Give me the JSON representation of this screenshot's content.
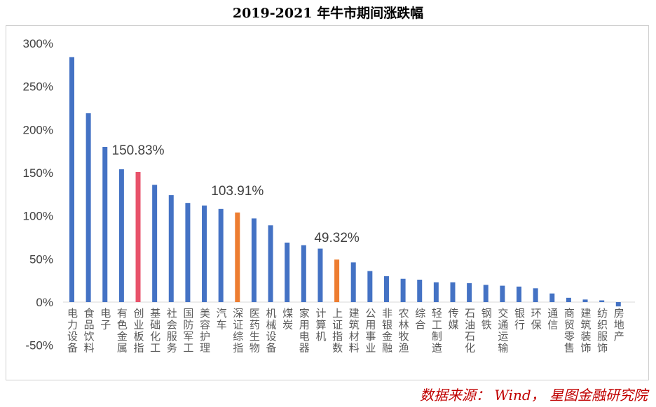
{
  "chart_data": {
    "type": "bar",
    "title": "2019-2021 年牛市期间涨跌幅",
    "xlabel": "",
    "ylabel": "",
    "ylim": [
      -50,
      300
    ],
    "yticks": [
      -50,
      0,
      50,
      100,
      150,
      200,
      250,
      300
    ],
    "ytick_labels": [
      "-50%",
      "0%",
      "50%",
      "100%",
      "150%",
      "200%",
      "250%",
      "300%"
    ],
    "categories": [
      "电力设备",
      "食品饮料",
      "电子",
      "有色金属",
      "创业板指",
      "基础化工",
      "社会服务",
      "国防军工",
      "美容护理",
      "汽车",
      "深证综指",
      "医药生物",
      "机械设备",
      "煤炭",
      "家用电器",
      "计算机",
      "上证指数",
      "建筑材料",
      "公用事业",
      "非银金融",
      "农林牧渔",
      "综合",
      "轻工制造",
      "传媒",
      "石油石化",
      "钢铁",
      "交通运输",
      "银行",
      "环保",
      "通信",
      "商贸零售",
      "建筑装饰",
      "纺织服饰",
      "房地产"
    ],
    "values": [
      284,
      219,
      180,
      154,
      150.83,
      136,
      124,
      115,
      112,
      108,
      103.91,
      97,
      89,
      69,
      66,
      62,
      49.32,
      46,
      36,
      30,
      27,
      26,
      23,
      23,
      22,
      20,
      19,
      18,
      16,
      10,
      5,
      3,
      2,
      -5
    ],
    "colors": [
      "#4472C4",
      "#4472C4",
      "#4472C4",
      "#4472C4",
      "#E8526A",
      "#4472C4",
      "#4472C4",
      "#4472C4",
      "#4472C4",
      "#4472C4",
      "#ED7D31",
      "#4472C4",
      "#4472C4",
      "#4472C4",
      "#4472C4",
      "#4472C4",
      "#ED7D31",
      "#4472C4",
      "#4472C4",
      "#4472C4",
      "#4472C4",
      "#4472C4",
      "#4472C4",
      "#4472C4",
      "#4472C4",
      "#4472C4",
      "#4472C4",
      "#4472C4",
      "#4472C4",
      "#4472C4",
      "#4472C4",
      "#4472C4",
      "#4472C4",
      "#4472C4"
    ],
    "annotations": [
      {
        "category": "创业板指",
        "text": "150.83%"
      },
      {
        "category": "深证综指",
        "text": "103.91%"
      },
      {
        "category": "上证指数",
        "text": "49.32%"
      }
    ],
    "grid": false,
    "legend": "none"
  },
  "source": "数据来源： Wind， 星图金融研究院"
}
